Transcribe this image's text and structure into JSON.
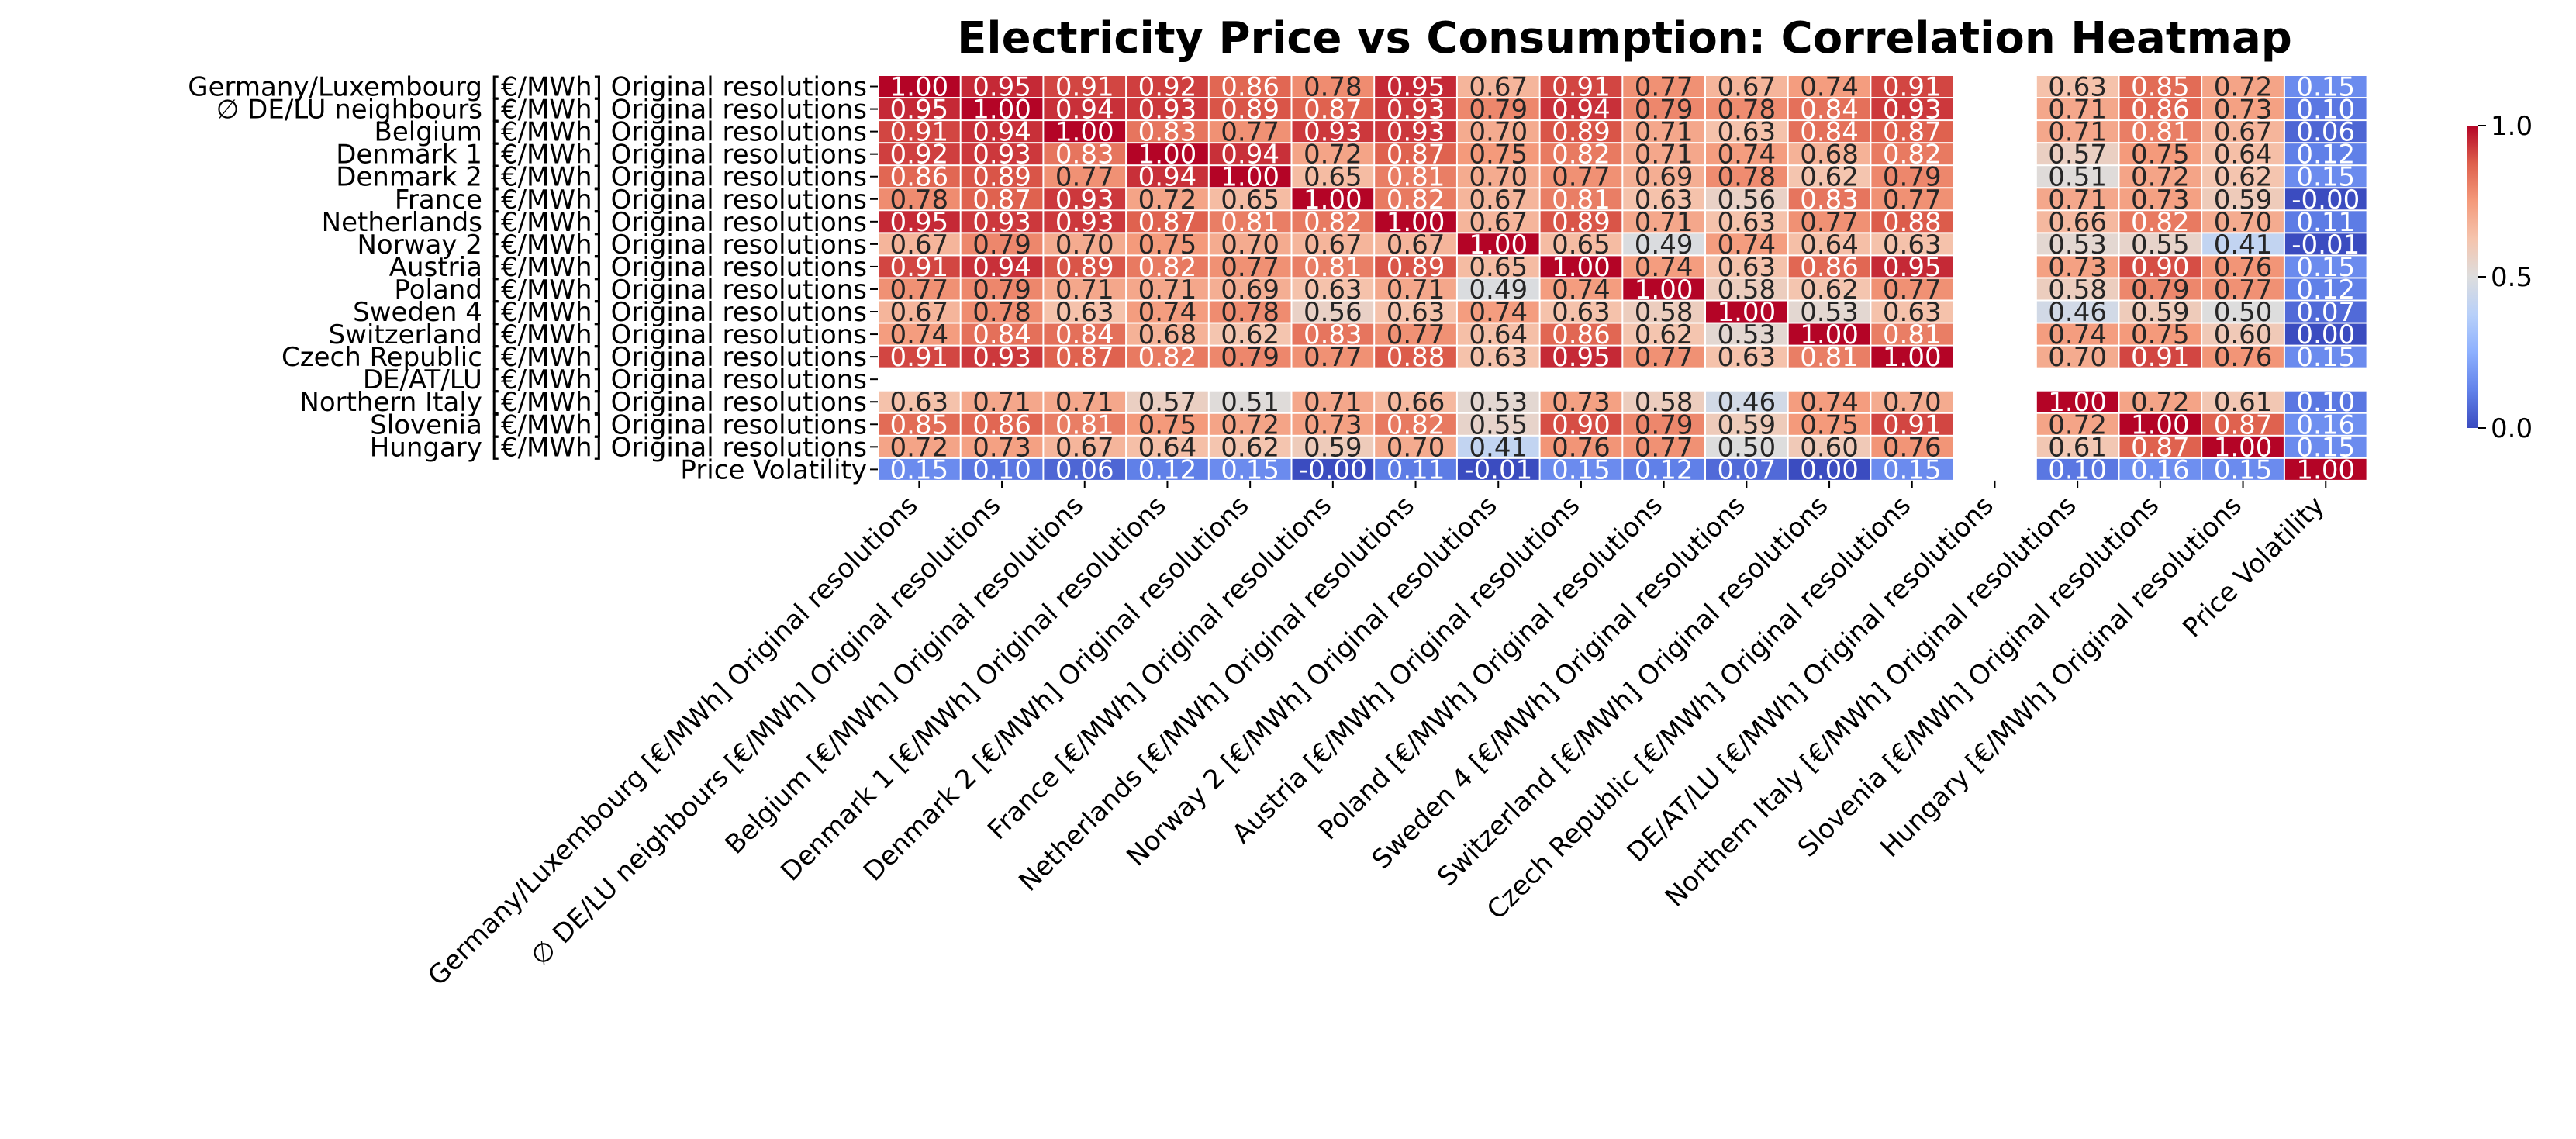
{
  "chart_data": {
    "type": "heatmap",
    "title": "Electricity Price vs Consumption: Correlation Heatmap",
    "xlabel": "",
    "ylabel": "",
    "labels": [
      "Germany/Luxembourg [€/MWh] Original resolutions",
      "∅ DE/LU neighbours [€/MWh] Original resolutions",
      "Belgium [€/MWh] Original resolutions",
      "Denmark 1 [€/MWh] Original resolutions",
      "Denmark 2 [€/MWh] Original resolutions",
      "France [€/MWh] Original resolutions",
      "Netherlands [€/MWh] Original resolutions",
      "Norway 2 [€/MWh] Original resolutions",
      "Austria [€/MWh] Original resolutions",
      "Poland [€/MWh] Original resolutions",
      "Sweden 4 [€/MWh] Original resolutions",
      "Switzerland [€/MWh] Original resolutions",
      "Czech Republic [€/MWh] Original resolutions",
      "DE/AT/LU [€/MWh] Original resolutions",
      "Northern Italy [€/MWh] Original resolutions",
      "Slovenia [€/MWh] Original resolutions",
      "Hungary [€/MWh] Original resolutions",
      "Price Volatility"
    ],
    "values": [
      [
        1.0,
        0.95,
        0.91,
        0.92,
        0.86,
        0.78,
        0.95,
        0.67,
        0.91,
        0.77,
        0.67,
        0.74,
        0.91,
        null,
        0.63,
        0.85,
        0.72,
        0.15
      ],
      [
        0.95,
        1.0,
        0.94,
        0.93,
        0.89,
        0.87,
        0.93,
        0.79,
        0.94,
        0.79,
        0.78,
        0.84,
        0.93,
        null,
        0.71,
        0.86,
        0.73,
        0.1
      ],
      [
        0.91,
        0.94,
        1.0,
        0.83,
        0.77,
        0.93,
        0.93,
        0.7,
        0.89,
        0.71,
        0.63,
        0.84,
        0.87,
        null,
        0.71,
        0.81,
        0.67,
        0.06
      ],
      [
        0.92,
        0.93,
        0.83,
        1.0,
        0.94,
        0.72,
        0.87,
        0.75,
        0.82,
        0.71,
        0.74,
        0.68,
        0.82,
        null,
        0.57,
        0.75,
        0.64,
        0.12
      ],
      [
        0.86,
        0.89,
        0.77,
        0.94,
        1.0,
        0.65,
        0.81,
        0.7,
        0.77,
        0.69,
        0.78,
        0.62,
        0.79,
        null,
        0.51,
        0.72,
        0.62,
        0.15
      ],
      [
        0.78,
        0.87,
        0.93,
        0.72,
        0.65,
        1.0,
        0.82,
        0.67,
        0.81,
        0.63,
        0.56,
        0.83,
        0.77,
        null,
        0.71,
        0.73,
        0.59,
        -0.0
      ],
      [
        0.95,
        0.93,
        0.93,
        0.87,
        0.81,
        0.82,
        1.0,
        0.67,
        0.89,
        0.71,
        0.63,
        0.77,
        0.88,
        null,
        0.66,
        0.82,
        0.7,
        0.11
      ],
      [
        0.67,
        0.79,
        0.7,
        0.75,
        0.7,
        0.67,
        0.67,
        1.0,
        0.65,
        0.49,
        0.74,
        0.64,
        0.63,
        null,
        0.53,
        0.55,
        0.41,
        -0.01
      ],
      [
        0.91,
        0.94,
        0.89,
        0.82,
        0.77,
        0.81,
        0.89,
        0.65,
        1.0,
        0.74,
        0.63,
        0.86,
        0.95,
        null,
        0.73,
        0.9,
        0.76,
        0.15
      ],
      [
        0.77,
        0.79,
        0.71,
        0.71,
        0.69,
        0.63,
        0.71,
        0.49,
        0.74,
        1.0,
        0.58,
        0.62,
        0.77,
        null,
        0.58,
        0.79,
        0.77,
        0.12
      ],
      [
        0.67,
        0.78,
        0.63,
        0.74,
        0.78,
        0.56,
        0.63,
        0.74,
        0.63,
        0.58,
        1.0,
        0.53,
        0.63,
        null,
        0.46,
        0.59,
        0.5,
        0.07
      ],
      [
        0.74,
        0.84,
        0.84,
        0.68,
        0.62,
        0.83,
        0.77,
        0.64,
        0.86,
        0.62,
        0.53,
        1.0,
        0.81,
        null,
        0.74,
        0.75,
        0.6,
        0.0
      ],
      [
        0.91,
        0.93,
        0.87,
        0.82,
        0.79,
        0.77,
        0.88,
        0.63,
        0.95,
        0.77,
        0.63,
        0.81,
        1.0,
        null,
        0.7,
        0.91,
        0.76,
        0.15
      ],
      [
        null,
        null,
        null,
        null,
        null,
        null,
        null,
        null,
        null,
        null,
        null,
        null,
        null,
        null,
        null,
        null,
        null,
        null
      ],
      [
        0.63,
        0.71,
        0.71,
        0.57,
        0.51,
        0.71,
        0.66,
        0.53,
        0.73,
        0.58,
        0.46,
        0.74,
        0.7,
        null,
        1.0,
        0.72,
        0.61,
        0.1
      ],
      [
        0.85,
        0.86,
        0.81,
        0.75,
        0.72,
        0.73,
        0.82,
        0.55,
        0.9,
        0.79,
        0.59,
        0.75,
        0.91,
        null,
        0.72,
        1.0,
        0.87,
        0.16
      ],
      [
        0.72,
        0.73,
        0.67,
        0.64,
        0.62,
        0.59,
        0.7,
        0.41,
        0.76,
        0.77,
        0.5,
        0.6,
        0.76,
        null,
        0.61,
        0.87,
        1.0,
        0.15
      ],
      [
        0.15,
        0.1,
        0.06,
        0.12,
        0.15,
        -0.0,
        0.11,
        -0.01,
        0.15,
        0.12,
        0.07,
        0.0,
        0.15,
        null,
        0.1,
        0.16,
        0.15,
        1.0
      ]
    ],
    "colorbar": {
      "range": [
        0.0,
        1.0
      ],
      "ticks": [
        "0.0",
        "0.5",
        "1.0"
      ],
      "colormap": "coolwarm"
    },
    "grid": false,
    "legend": "right"
  }
}
